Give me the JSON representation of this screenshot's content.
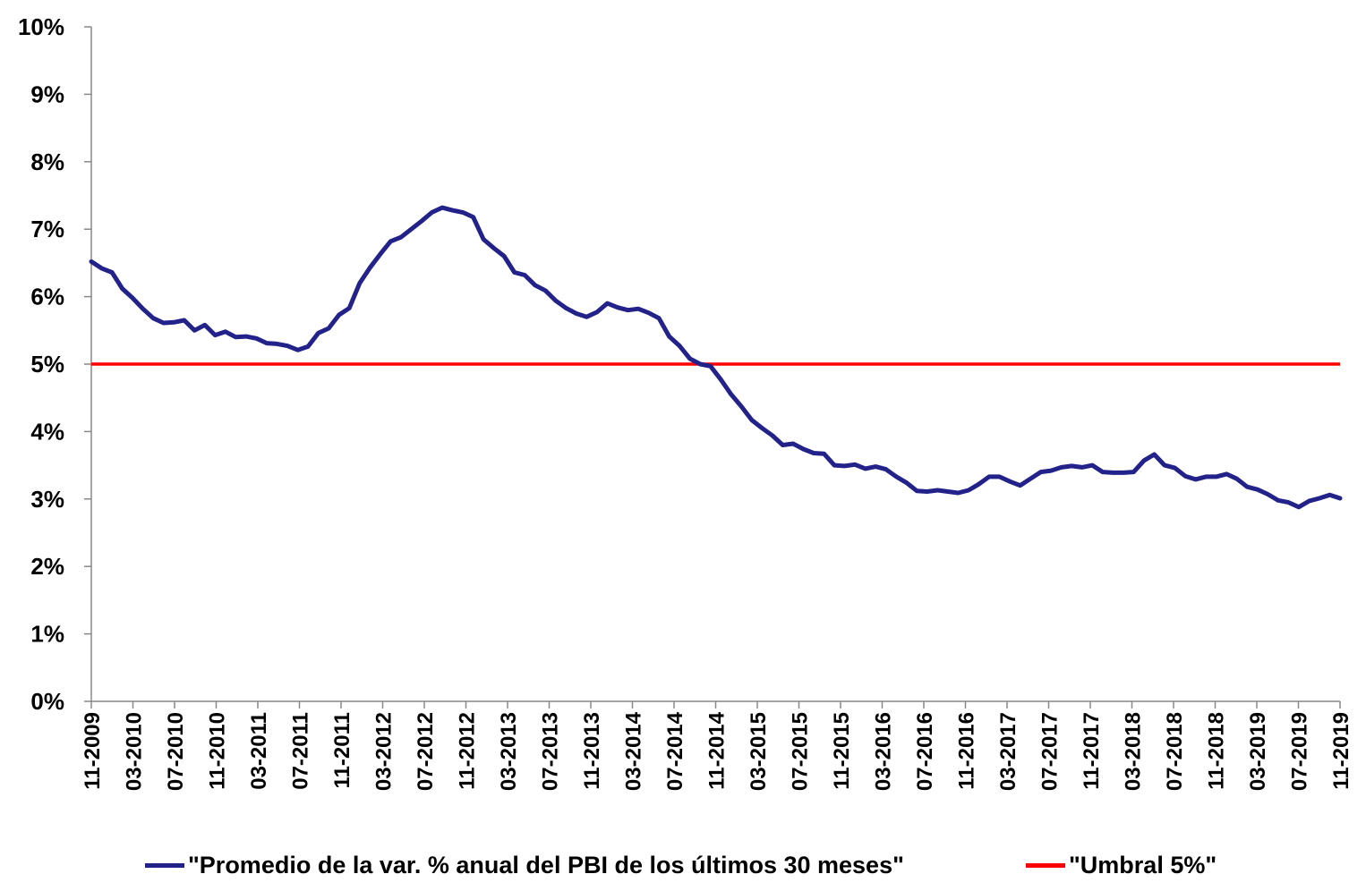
{
  "chart_data": {
    "type": "line",
    "y_ticks": [
      "0%",
      "1%",
      "2%",
      "3%",
      "4%",
      "5%",
      "6%",
      "7%",
      "8%",
      "9%",
      "10%"
    ],
    "ylim": [
      0,
      10
    ],
    "x_ticks": [
      "11-2009",
      "03-2010",
      "07-2010",
      "11-2010",
      "03-2011",
      "07-2011",
      "11-2011",
      "03-2012",
      "07-2012",
      "11-2012",
      "03-2013",
      "07-2013",
      "11-2013",
      "03-2014",
      "07-2014",
      "11-2014",
      "03-2015",
      "07-2015",
      "11-2015",
      "03-2016",
      "07-2016",
      "11-2016",
      "03-2017",
      "07-2017",
      "11-2017",
      "03-2018",
      "07-2018",
      "11-2018",
      "03-2019",
      "07-2019",
      "11-2019"
    ],
    "x_range": [
      "11-2009",
      "11-2019"
    ],
    "grid": false,
    "legend_position": "bottom",
    "series": [
      {
        "name": "\"Promedio de la var. % anual del PBI de los últimos 30 meses\"",
        "color": "#22228a",
        "values": [
          6.52,
          6.42,
          6.36,
          6.12,
          5.98,
          5.82,
          5.68,
          5.61,
          5.62,
          5.65,
          5.5,
          5.58,
          5.43,
          5.48,
          5.4,
          5.41,
          5.38,
          5.31,
          5.3,
          5.27,
          5.21,
          5.26,
          5.46,
          5.53,
          5.73,
          5.83,
          6.2,
          6.43,
          6.63,
          6.82,
          6.88,
          7.0,
          7.12,
          7.25,
          7.32,
          7.28,
          7.25,
          7.18,
          6.85,
          6.72,
          6.6,
          6.36,
          6.32,
          6.17,
          6.09,
          5.94,
          5.83,
          5.75,
          5.7,
          5.77,
          5.9,
          5.84,
          5.8,
          5.82,
          5.76,
          5.68,
          5.41,
          5.27,
          5.08,
          5.0,
          4.97,
          4.77,
          4.55,
          4.37,
          4.17,
          4.05,
          3.94,
          3.8,
          3.82,
          3.74,
          3.68,
          3.67,
          3.5,
          3.49,
          3.51,
          3.45,
          3.48,
          3.44,
          3.33,
          3.24,
          3.12,
          3.11,
          3.13,
          3.11,
          3.09,
          3.13,
          3.22,
          3.33,
          3.33,
          3.26,
          3.2,
          3.3,
          3.4,
          3.42,
          3.47,
          3.49,
          3.47,
          3.5,
          3.4,
          3.39,
          3.39,
          3.4,
          3.57,
          3.66,
          3.5,
          3.46,
          3.34,
          3.29,
          3.33,
          3.33,
          3.37,
          3.3,
          3.18,
          3.14,
          3.07,
          2.98,
          2.95,
          2.88,
          2.97,
          3.01,
          3.06,
          3.01
        ]
      },
      {
        "name": "\"Umbral 5%\"",
        "color": "#ff0000",
        "values": [
          5.0,
          5.0
        ]
      }
    ]
  }
}
